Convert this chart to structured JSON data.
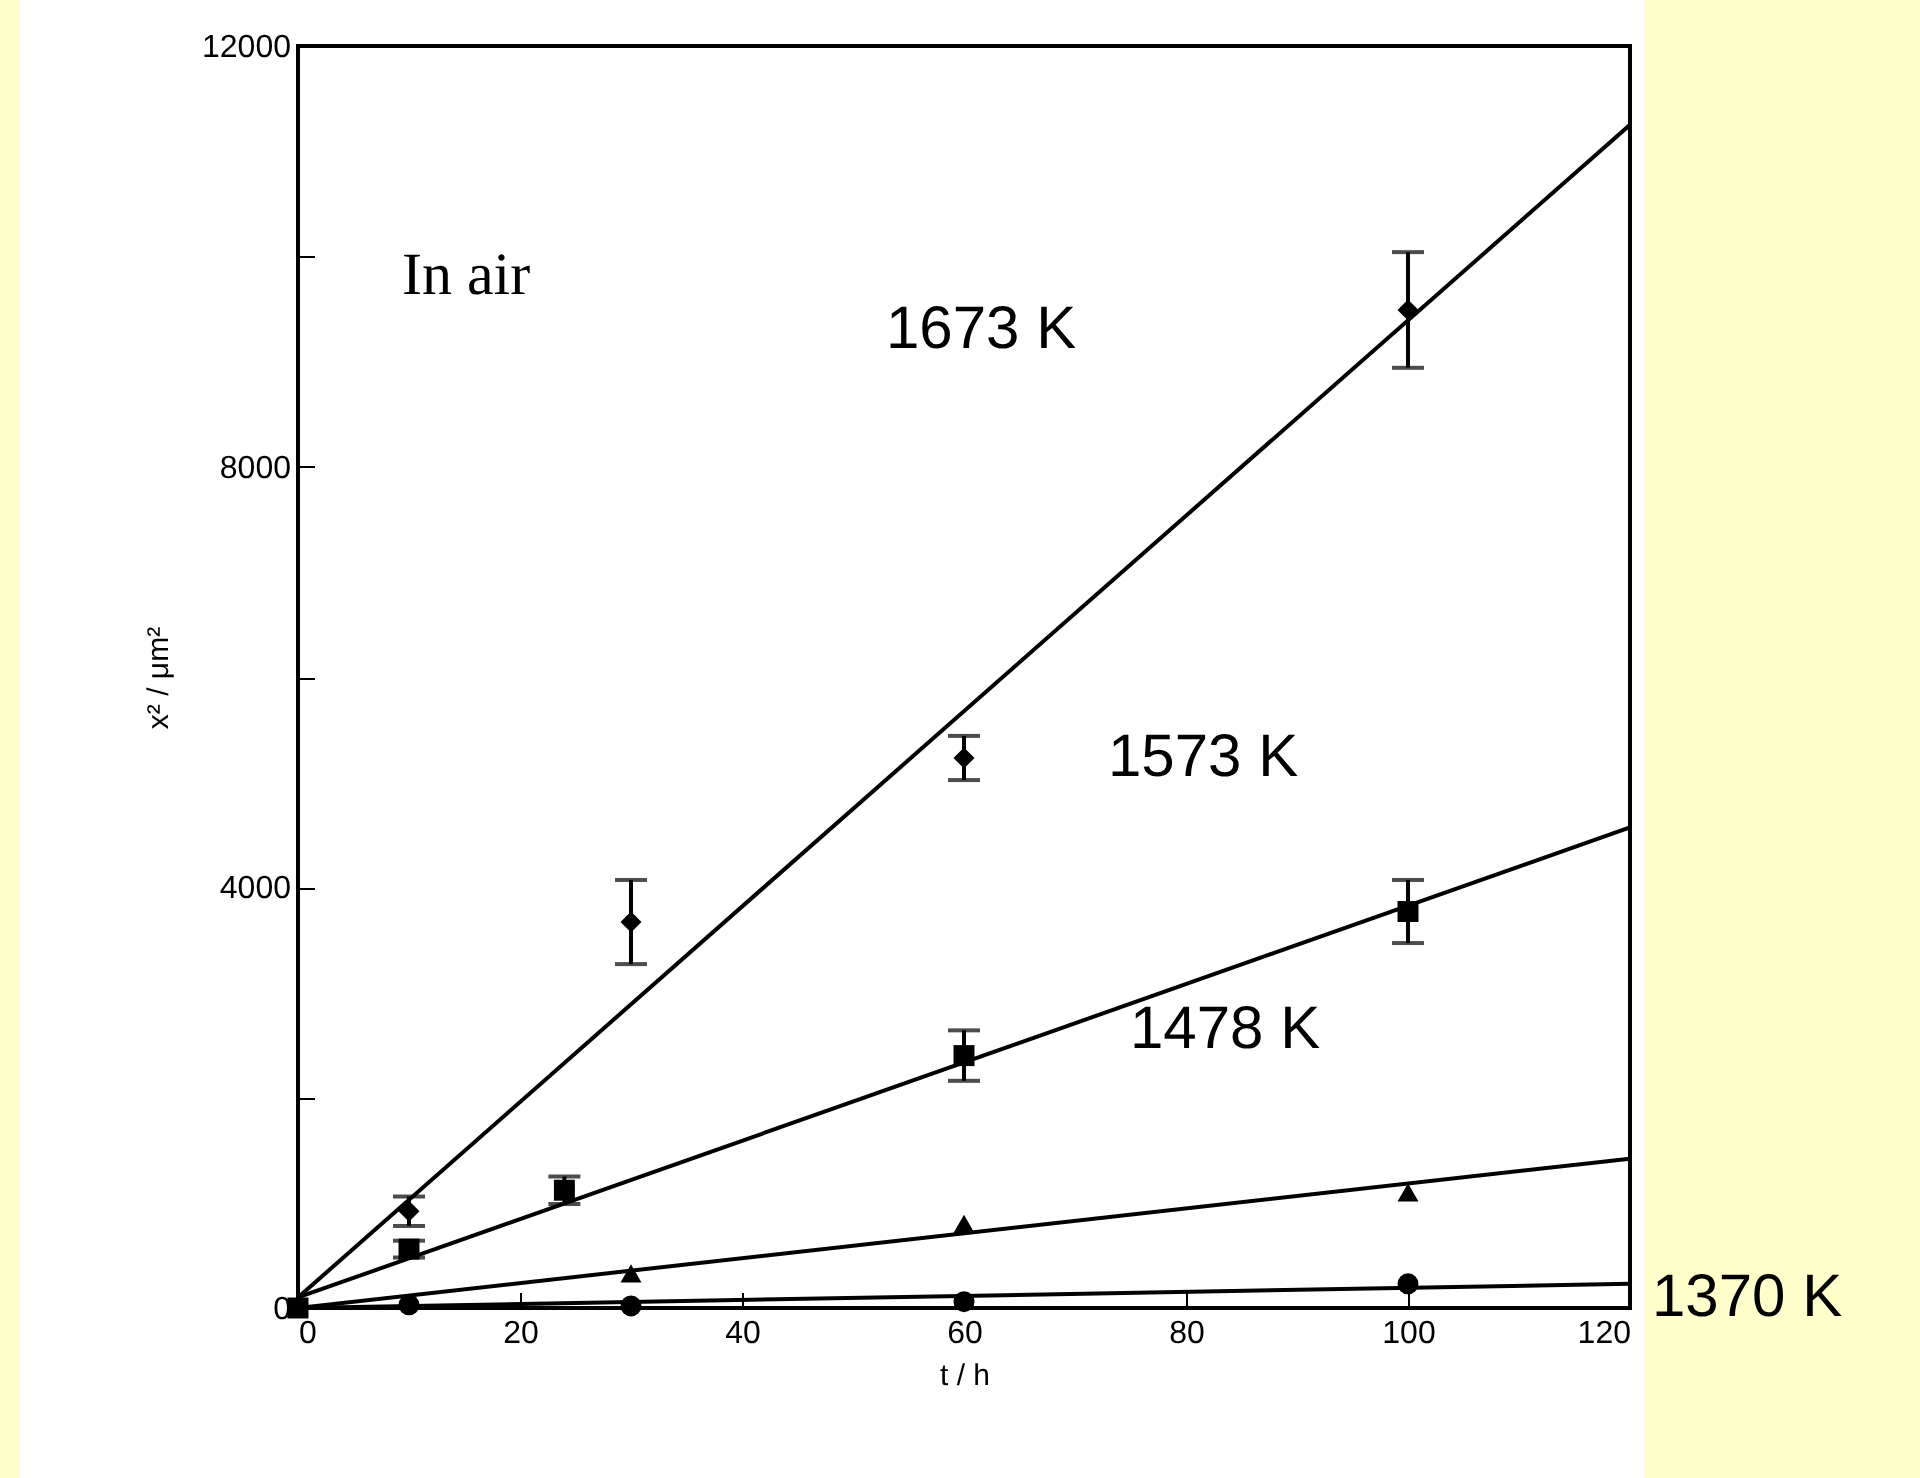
{
  "chart_data": {
    "type": "scatter",
    "xlabel": "t / h",
    "ylabel": "x² / μm²",
    "xlim": [
      0,
      120
    ],
    "xticks": [
      0,
      20,
      40,
      60,
      80,
      100,
      120
    ],
    "ylim": [
      0,
      12000
    ],
    "yticks": [
      0,
      {
        "value": 2000,
        "label": null
      },
      4000,
      {
        "value": 6000,
        "label": null
      },
      8000,
      {
        "value": 10000,
        "label": null
      },
      12000
    ],
    "grid": false,
    "series": [
      {
        "marker": "diamond",
        "color": "#000000",
        "x": [
          10,
          30,
          60,
          100
        ],
        "values": [
          920,
          3670,
          5230,
          9490
        ],
        "errors": [
          140,
          400,
          210,
          550
        ]
      },
      {
        "marker": "square",
        "color": "#000000",
        "x": [
          0,
          10,
          24,
          60,
          100
        ],
        "values": [
          0,
          560,
          1120,
          2400,
          3770
        ],
        "errors": [
          null,
          80,
          130,
          240,
          300
        ]
      },
      {
        "marker": "triangle",
        "color": "#000000",
        "x": [
          30,
          60,
          100
        ],
        "values": [
          330,
          800,
          1100
        ]
      },
      {
        "marker": "circle",
        "color": "#000000",
        "x": [
          10,
          30,
          60,
          100
        ],
        "values": [
          30,
          20,
          60,
          230
        ]
      },
      {
        "type": "line",
        "color": "#000000",
        "x": [
          0,
          120
        ],
        "values": [
          100,
          11250
        ]
      },
      {
        "type": "line",
        "color": "#000000",
        "x": [
          0,
          120
        ],
        "values": [
          100,
          4570
        ]
      },
      {
        "type": "line",
        "color": "#000000",
        "x": [
          0,
          120
        ],
        "values": [
          0,
          1420
        ]
      },
      {
        "type": "line",
        "color": "#000000",
        "x": [
          0,
          120
        ],
        "values": [
          0,
          230
        ]
      }
    ],
    "annotations": [
      "In air",
      "1673 K",
      "1573 K",
      "1478 K",
      "1370 K"
    ]
  }
}
